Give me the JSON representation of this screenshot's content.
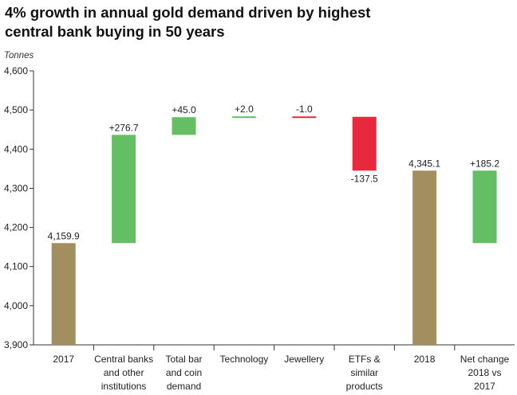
{
  "title_lines": [
    "4% growth in annual gold demand driven by highest",
    "central bank buying in 50 years"
  ],
  "chart_data": {
    "type": "bar",
    "subtype": "waterfall",
    "title": "4% growth in annual gold demand driven by highest central bank buying in 50 years",
    "ylabel": "Tonnes",
    "ylim": [
      3900,
      4600
    ],
    "yticks": [
      3900,
      4000,
      4100,
      4200,
      4300,
      4400,
      4500,
      4600
    ],
    "ytick_labels": [
      "3,900",
      "4,000",
      "4,100",
      "4,200",
      "4,300",
      "4,400",
      "4,500",
      "4,600"
    ],
    "grid": false,
    "legend": "none",
    "colors": {
      "total": "#a38e5f",
      "increase": "#64be64",
      "decrease": "#e8283c"
    },
    "bars": [
      {
        "category": [
          "2017"
        ],
        "kind": "total",
        "start": 3900,
        "end": 4159.9,
        "label": "4,159.9"
      },
      {
        "category": [
          "Central banks",
          "and other",
          "institutions"
        ],
        "kind": "increase",
        "start": 4159.9,
        "end": 4436.6,
        "label": "+276.7"
      },
      {
        "category": [
          "Total bar",
          "and coin",
          "demand"
        ],
        "kind": "increase",
        "start": 4436.6,
        "end": 4481.6,
        "label": "+45.0"
      },
      {
        "category": [
          "Technology"
        ],
        "kind": "increase",
        "start": 4481.6,
        "end": 4483.6,
        "label": "+2.0"
      },
      {
        "category": [
          "Jewellery"
        ],
        "kind": "decrease",
        "start": 4483.6,
        "end": 4482.6,
        "label": "-1.0"
      },
      {
        "category": [
          "ETFs &",
          "similar",
          "products"
        ],
        "kind": "decrease",
        "start": 4482.6,
        "end": 4345.1,
        "label": "-137.5"
      },
      {
        "category": [
          "2018"
        ],
        "kind": "total",
        "start": 3900,
        "end": 4345.1,
        "label": "4,345.1"
      },
      {
        "category": [
          "Net change",
          "2018 vs",
          "2017"
        ],
        "kind": "increase",
        "start": 4159.9,
        "end": 4345.1,
        "label": "+185.2"
      }
    ]
  }
}
